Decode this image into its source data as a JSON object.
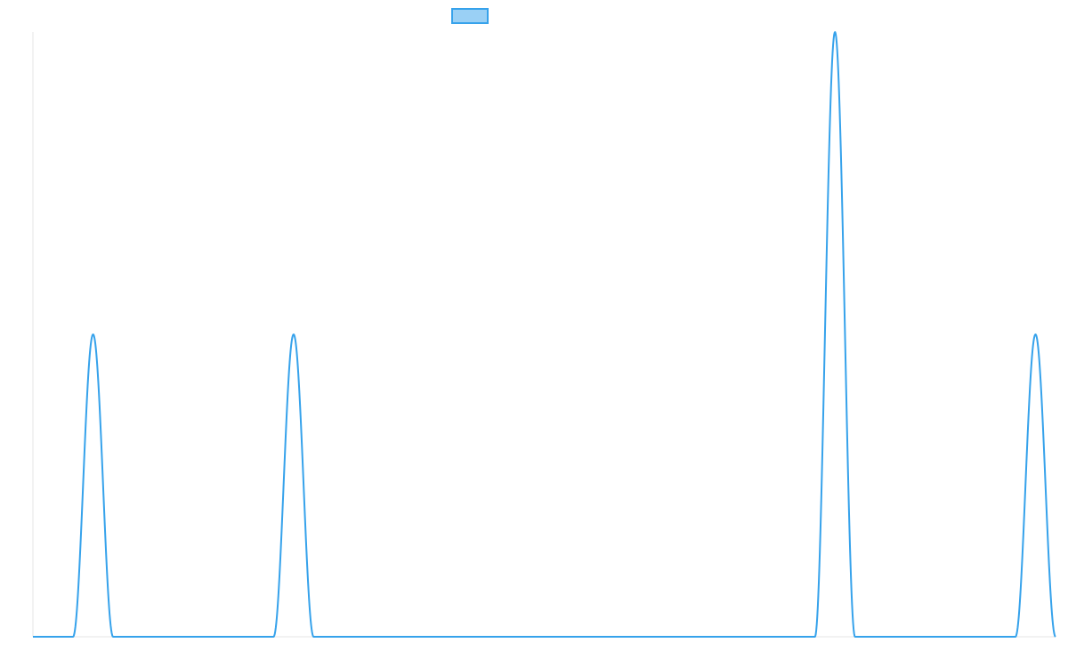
{
  "chart_data": {
    "type": "line",
    "title": "",
    "xlabel": "",
    "ylabel": "",
    "xlim": [
      0,
      51
    ],
    "ylim": [
      0,
      2
    ],
    "grid": false,
    "legend": {
      "position": "top-center",
      "swatch_only": true
    },
    "series": [
      {
        "color": "#36a2eb",
        "fill": "#9ad0f5",
        "peaks": [
          {
            "center": 3,
            "height": 1
          },
          {
            "center": 13,
            "height": 1
          },
          {
            "center": 40,
            "height": 2
          },
          {
            "center": 50,
            "height": 1
          }
        ],
        "peak_half_width": 1,
        "x_end": 51
      }
    ]
  }
}
